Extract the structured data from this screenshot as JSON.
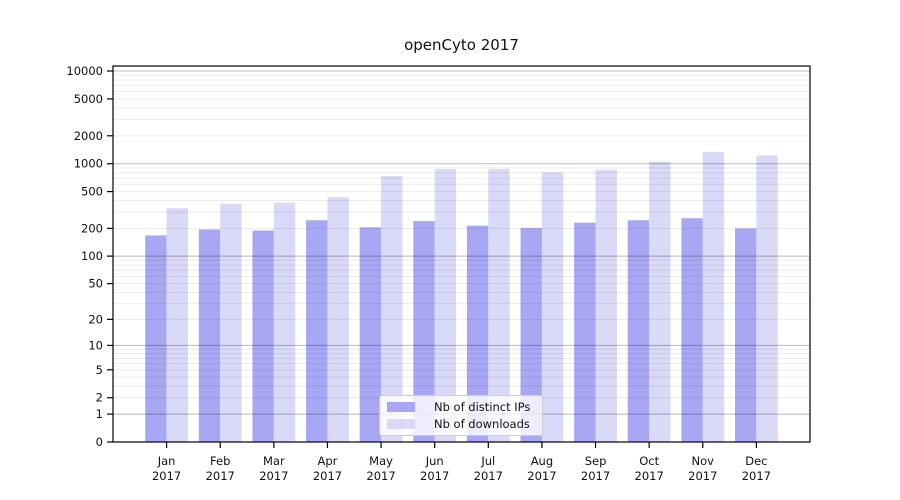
{
  "title": "openCyto 2017",
  "legend": {
    "items": [
      {
        "label": "Nb of distinct IPs",
        "color": "#a7a7f3"
      },
      {
        "label": "Nb of downloads",
        "color": "#d9d9f8"
      }
    ]
  },
  "chart_data": {
    "type": "bar",
    "title": "openCyto 2017",
    "xlabel": "",
    "ylabel": "",
    "y_scale": "log10(1+y)",
    "categories": [
      "Jan",
      "Feb",
      "Mar",
      "Apr",
      "May",
      "Jun",
      "Jul",
      "Aug",
      "Sep",
      "Oct",
      "Nov",
      "Dec"
    ],
    "category_year": "2017",
    "series": [
      {
        "name": "Nb of distinct IPs",
        "color": "#a7a7f3",
        "values": [
          168,
          195,
          190,
          245,
          205,
          240,
          214,
          202,
          231,
          245,
          258,
          200
        ]
      },
      {
        "name": "Nb of downloads",
        "color": "#d9d9f8",
        "values": [
          330,
          370,
          380,
          435,
          735,
          875,
          875,
          810,
          860,
          1060,
          1340,
          1230
        ]
      }
    ],
    "y_ticks": [
      0,
      1,
      2,
      5,
      10,
      20,
      50,
      100,
      200,
      500,
      1000,
      2000,
      5000,
      10000
    ],
    "y_major_gridlines": [
      1,
      10,
      100,
      1000,
      10000
    ],
    "ylim": [
      0,
      11300
    ],
    "grid": true,
    "legend_position": "lower center"
  },
  "colors": {
    "background": "#ffffff",
    "axis": "#000000",
    "major_grid": "rgba(0,0,0,0.28)",
    "minor_grid": "rgba(0,0,0,0.08)",
    "text": "#111111"
  }
}
